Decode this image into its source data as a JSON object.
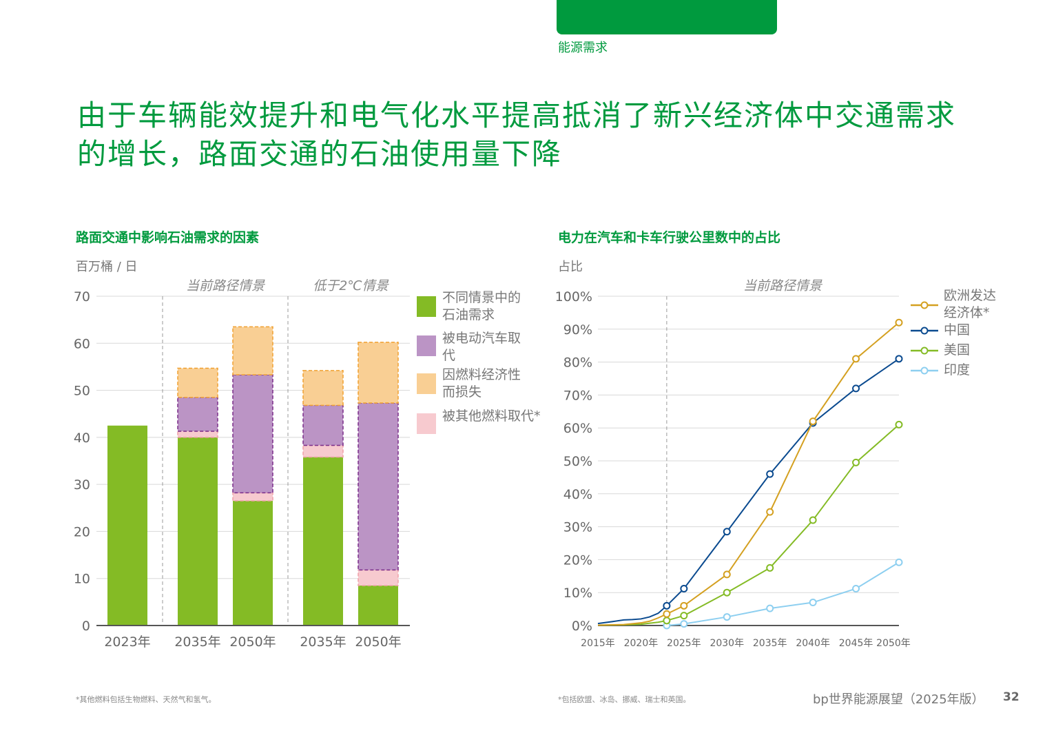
{
  "header": {
    "section": "能源需求",
    "title": "由于车辆能效提升和电气化水平提高抵消了新兴经济体中交通需求的增长，路面交通的石油使用量下降",
    "brand_color": "#009a3e"
  },
  "footer": {
    "note_left": "*其他燃料包括生物燃料、天然气和氢气。",
    "note_right": "*包括欧盟、冰岛、挪威、瑞士和英国。",
    "publication": "bp世界能源展望（2025年版）",
    "page_number": "32"
  },
  "chart_data": [
    {
      "type": "bar",
      "stacked": true,
      "title": "路面交通中影响石油需求的因素",
      "ylabel": "百万桶 / 日",
      "ylim": [
        0,
        70
      ],
      "yticks": [
        0,
        10,
        20,
        30,
        40,
        50,
        60,
        70
      ],
      "grid": true,
      "legend": "right",
      "groups": [
        {
          "label": "",
          "categories": [
            0
          ]
        },
        {
          "label": "当前路径情景",
          "categories": [
            1,
            2
          ]
        },
        {
          "label": "低于2℃情景",
          "categories": [
            3,
            4
          ]
        }
      ],
      "categories": [
        "2023年",
        "2035年",
        "2050年",
        "2035年",
        "2050年"
      ],
      "series": [
        {
          "name": "不同情景中的石油需求",
          "color": "#84bb25",
          "values": [
            42.5,
            40,
            26.5,
            35.8,
            8.5
          ]
        },
        {
          "name": "被其他燃料取代*",
          "color": "#f7cacf",
          "values": [
            0,
            1.3,
            1.7,
            2.5,
            3.3
          ]
        },
        {
          "name": "被电动汽车取代",
          "color": "#bb94c5",
          "values": [
            0,
            7.2,
            25.1,
            8.5,
            35.5
          ]
        },
        {
          "name": "因燃料经济性而损失",
          "color": "#f9cf94",
          "values": [
            0,
            6.2,
            10.2,
            7.4,
            12.9
          ]
        }
      ],
      "legend_order": [
        0,
        2,
        3,
        1
      ]
    },
    {
      "type": "line",
      "title": "电力在汽车和卡车行驶公里数中的占比",
      "ylabel": "占比",
      "annotation": "当前路径情景",
      "ylim": [
        0,
        100
      ],
      "yticks": [
        "0%",
        "10%",
        "20%",
        "30%",
        "40%",
        "50%",
        "60%",
        "70%",
        "80%",
        "90%",
        "100%"
      ],
      "xlim": [
        2015,
        2050
      ],
      "xticks": [
        "2015年",
        "2020年",
        "2025年",
        "2030年",
        "2035年",
        "2040年",
        "2045年",
        "2050年"
      ],
      "projection_start": 2023,
      "grid": true,
      "legend": "right",
      "series": [
        {
          "name": "欧洲发达经济体*",
          "color": "#d4a020",
          "history": [
            [
              2015,
              0.1
            ],
            [
              2018,
              0.3
            ],
            [
              2020,
              0.8
            ],
            [
              2021,
              1.3
            ],
            [
              2022,
              2.3
            ]
          ],
          "points": [
            [
              2023,
              3.5
            ],
            [
              2025,
              6
            ],
            [
              2030,
              15.5
            ],
            [
              2035,
              34.5
            ],
            [
              2040,
              62
            ],
            [
              2045,
              81
            ],
            [
              2050,
              92
            ]
          ]
        },
        {
          "name": "中国",
          "color": "#0a4a8f",
          "history": [
            [
              2015,
              0.6
            ],
            [
              2017,
              1.3
            ],
            [
              2018,
              1.7
            ],
            [
              2019,
              1.8
            ],
            [
              2020,
              2
            ],
            [
              2021,
              2.6
            ],
            [
              2022,
              3.7
            ]
          ],
          "points": [
            [
              2023,
              6
            ],
            [
              2025,
              11.2
            ],
            [
              2030,
              28.5
            ],
            [
              2035,
              46
            ],
            [
              2040,
              61.5
            ],
            [
              2045,
              72
            ],
            [
              2050,
              81
            ]
          ]
        },
        {
          "name": "美国",
          "color": "#84bb25",
          "history": [
            [
              2015,
              0.1
            ],
            [
              2018,
              0.2
            ],
            [
              2020,
              0.4
            ],
            [
              2022,
              1
            ]
          ],
          "points": [
            [
              2023,
              1.5
            ],
            [
              2025,
              3
            ],
            [
              2030,
              10
            ],
            [
              2035,
              17.5
            ],
            [
              2040,
              32
            ],
            [
              2045,
              49.5
            ],
            [
              2050,
              61
            ]
          ]
        },
        {
          "name": "印度",
          "color": "#8dcff0",
          "history": [],
          "points": [
            [
              2023,
              0
            ],
            [
              2025,
              0.5
            ],
            [
              2030,
              2.6
            ],
            [
              2035,
              5.2
            ],
            [
              2040,
              7
            ],
            [
              2045,
              11.2
            ],
            [
              2050,
              19.2
            ]
          ]
        }
      ]
    }
  ]
}
